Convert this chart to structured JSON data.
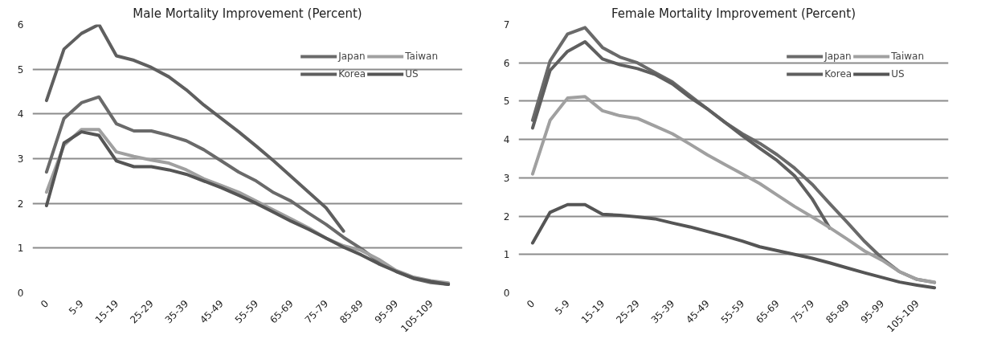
{
  "chart_data": [
    {
      "type": "line",
      "title": "Male Mortality Improvement (Percent)",
      "categories": [
        "0",
        null,
        "5-9",
        null,
        "15-19",
        null,
        "25-29",
        null,
        "35-39",
        null,
        "45-49",
        null,
        "55-59",
        null,
        "65-69",
        null,
        "75-79",
        null,
        "85-89",
        null,
        "95-99",
        null,
        "105-109",
        null
      ],
      "series": [
        {
          "name": "Japan",
          "color": "#6a6a6a",
          "values": [
            2.7,
            3.9,
            4.25,
            4.38,
            3.78,
            3.62,
            3.62,
            3.52,
            3.4,
            3.2,
            2.95,
            2.7,
            2.5,
            2.24,
            2.05,
            1.78,
            1.53,
            1.24,
            0.99,
            0.7,
            0.48,
            0.32,
            0.23,
            0.19
          ]
        },
        {
          "name": "Korea",
          "color": "#5f5f5f",
          "values": [
            4.3,
            5.45,
            5.8,
            6.0,
            5.3,
            5.2,
            5.04,
            4.83,
            4.54,
            4.2,
            3.9,
            3.6,
            3.28,
            2.95,
            2.6,
            2.25,
            1.9,
            1.38,
            null,
            null,
            null,
            null,
            null,
            null
          ]
        },
        {
          "name": "Taiwan",
          "color": "#a0a0a0",
          "values": [
            2.25,
            3.3,
            3.65,
            3.65,
            3.15,
            3.05,
            2.97,
            2.9,
            2.75,
            2.55,
            2.4,
            2.25,
            2.05,
            1.85,
            1.65,
            1.45,
            1.22,
            1.05,
            0.95,
            0.75,
            0.5,
            0.35,
            0.27,
            0.22
          ]
        },
        {
          "name": "US",
          "color": "#555555",
          "values": [
            1.95,
            3.35,
            3.6,
            3.52,
            2.95,
            2.82,
            2.82,
            2.75,
            2.65,
            2.5,
            2.35,
            2.18,
            2.0,
            1.8,
            1.6,
            1.42,
            1.22,
            1.02,
            0.85,
            0.65,
            0.48,
            0.33,
            0.25,
            0.19
          ]
        }
      ],
      "ylim": [
        0,
        6
      ],
      "yticks": [
        0,
        1,
        2,
        3,
        4,
        5,
        6
      ],
      "grid": "y",
      "legend": "top right",
      "marker": "none",
      "line_style": "solid"
    },
    {
      "type": "line",
      "title": "Female Mortality Improvement (Percent)",
      "categories": [
        "0",
        null,
        "5-9",
        null,
        "15-19",
        null,
        "25-29",
        null,
        "35-39",
        null,
        "45-49",
        null,
        "55-59",
        null,
        "65-69",
        null,
        "75-79",
        null,
        "85-89",
        null,
        "95-99",
        null,
        "105-109",
        null
      ],
      "series": [
        {
          "name": "Japan",
          "color": "#6a6a6a",
          "values": [
            4.5,
            6.05,
            6.75,
            6.92,
            6.4,
            6.15,
            6.0,
            5.75,
            5.5,
            5.15,
            4.8,
            4.45,
            4.15,
            3.9,
            3.6,
            3.25,
            2.83,
            2.33,
            1.84,
            1.34,
            0.9,
            0.55,
            0.35,
            0.27
          ]
        },
        {
          "name": "Korea",
          "color": "#5f5f5f",
          "values": [
            4.3,
            5.8,
            6.3,
            6.55,
            6.1,
            5.95,
            5.85,
            5.7,
            5.45,
            5.1,
            4.8,
            4.45,
            4.1,
            3.77,
            3.45,
            3.05,
            2.45,
            1.69,
            null,
            null,
            null,
            null,
            null,
            null
          ]
        },
        {
          "name": "Taiwan",
          "color": "#a0a0a0",
          "values": [
            3.1,
            4.5,
            5.08,
            5.12,
            4.75,
            4.62,
            4.55,
            4.35,
            4.15,
            3.88,
            3.6,
            3.35,
            3.1,
            2.85,
            2.55,
            2.25,
            1.98,
            1.7,
            1.4,
            1.09,
            0.85,
            0.55,
            0.35,
            0.28
          ]
        },
        {
          "name": "US",
          "color": "#555555",
          "values": [
            1.3,
            2.1,
            2.3,
            2.3,
            2.05,
            2.02,
            1.98,
            1.93,
            1.82,
            1.72,
            1.6,
            1.48,
            1.35,
            1.2,
            1.1,
            1.0,
            0.9,
            0.78,
            0.65,
            0.52,
            0.4,
            0.28,
            0.2,
            0.13
          ]
        }
      ],
      "ylim": [
        0,
        7
      ],
      "yticks": [
        0,
        1,
        2,
        3,
        4,
        5,
        6,
        7
      ],
      "grid": "y",
      "legend": "top right",
      "marker": "none",
      "line_style": "solid"
    }
  ]
}
